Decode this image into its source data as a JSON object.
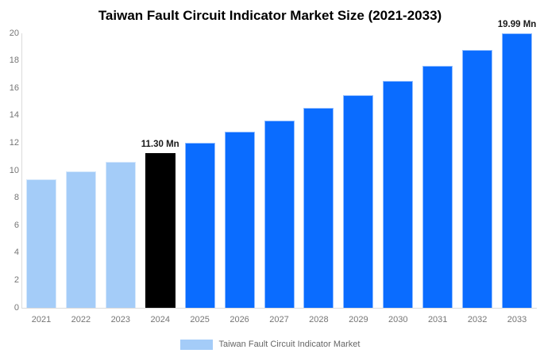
{
  "title": "Taiwan Fault Circuit Indicator Market Size (2021-2033)",
  "legend": {
    "label": "Taiwan Fault Circuit Indicator Market",
    "swatch_color": "#A4CCF8"
  },
  "colors": {
    "historical": "#A4CCF8",
    "highlight": "#000000",
    "forecast": "#0A6CFF",
    "axis_line": "#DBDBDB",
    "tick_label": "#757575",
    "legend_text": "#666666",
    "value_label": "#1A1A1A",
    "background": "#FFFFFF"
  },
  "chart_data": {
    "type": "bar",
    "title": "Taiwan Fault Circuit Indicator Market Size (2021-2033)",
    "unit": "Mn",
    "series_name": "Taiwan Fault Circuit Indicator Market",
    "categories": [
      "2021",
      "2022",
      "2023",
      "2024",
      "2025",
      "2026",
      "2027",
      "2028",
      "2029",
      "2030",
      "2031",
      "2032",
      "2033"
    ],
    "values": [
      9.34,
      9.95,
      10.61,
      11.3,
      12.04,
      12.83,
      13.67,
      14.56,
      15.51,
      16.53,
      17.61,
      18.76,
      19.99
    ],
    "bar_roles": [
      "historical",
      "historical",
      "historical",
      "highlight",
      "forecast",
      "forecast",
      "forecast",
      "forecast",
      "forecast",
      "forecast",
      "forecast",
      "forecast",
      "forecast"
    ],
    "data_labels": [
      null,
      null,
      null,
      "11.30 Mn",
      null,
      null,
      null,
      null,
      null,
      null,
      null,
      null,
      "19.99 Mn"
    ],
    "xlabel": "",
    "ylabel": "",
    "ylim": [
      0,
      20
    ],
    "ytick_step": 2,
    "grid": false,
    "legend_position": "bottom"
  }
}
